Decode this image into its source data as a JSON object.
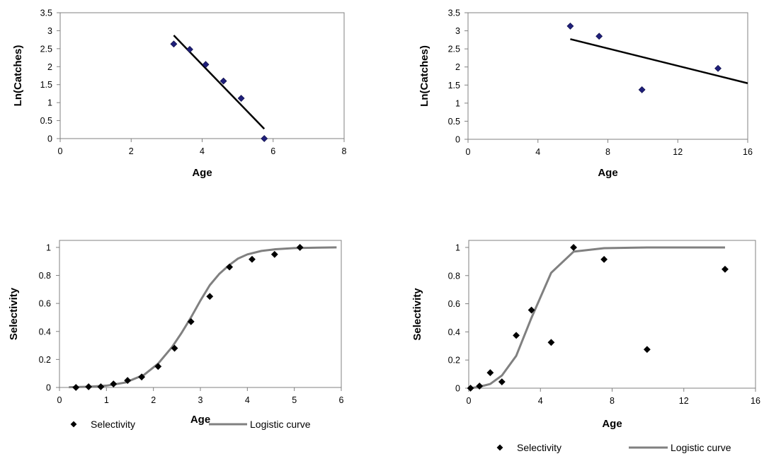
{
  "chart_data": [
    {
      "id": "top-left",
      "type": "scatter",
      "xlabel": "Age",
      "ylabel": "Ln(Catches)",
      "xlim": [
        0,
        8
      ],
      "ylim": [
        0,
        3.5
      ],
      "xticks": [
        "0",
        "2",
        "4",
        "6",
        "8"
      ],
      "yticks": [
        "0",
        "0.5",
        "1",
        "1.5",
        "2",
        "2.5",
        "3",
        "3.5"
      ],
      "grid": false,
      "series": [
        {
          "kind": "points",
          "marker": "diamond",
          "color": "#1f1f7a",
          "x": [
            3.2,
            3.65,
            4.1,
            4.6,
            5.1,
            5.75
          ],
          "y": [
            2.63,
            2.48,
            2.06,
            1.6,
            1.12,
            0.0
          ]
        },
        {
          "kind": "line",
          "color": "#000000",
          "x": [
            3.2,
            5.75
          ],
          "y": [
            2.87,
            0.27
          ]
        }
      ]
    },
    {
      "id": "top-right",
      "type": "scatter",
      "xlabel": "Age",
      "ylabel": "Ln(Catches)",
      "xlim": [
        0,
        16
      ],
      "ylim": [
        0,
        3.5
      ],
      "xticks": [
        "0",
        "4",
        "8",
        "12",
        "16"
      ],
      "yticks": [
        "0",
        "0.5",
        "1",
        "1.5",
        "2",
        "2.5",
        "3",
        "3.5"
      ],
      "grid": false,
      "series": [
        {
          "kind": "points",
          "marker": "diamond",
          "color": "#1f1f7a",
          "x": [
            5.85,
            7.5,
            9.95,
            14.3
          ],
          "y": [
            3.13,
            2.85,
            1.37,
            1.96
          ]
        },
        {
          "kind": "line",
          "color": "#000000",
          "x": [
            5.85,
            16
          ],
          "y": [
            2.77,
            1.55
          ]
        }
      ]
    },
    {
      "id": "bottom-left",
      "type": "scatter",
      "xlabel": "Age",
      "ylabel": "Selectivity",
      "xlim": [
        0,
        6
      ],
      "ylim": [
        0,
        1.05
      ],
      "xticks": [
        "0",
        "1",
        "2",
        "3",
        "4",
        "5",
        "6"
      ],
      "yticks": [
        "0",
        "0.2",
        "0.4",
        "0.6",
        "0.8",
        "1"
      ],
      "grid": false,
      "legend": {
        "placement": "bottom",
        "entries": [
          "Selectivity",
          "Logistic curve"
        ]
      },
      "series": [
        {
          "name": "Selectivity",
          "kind": "points",
          "marker": "diamond",
          "color": "#000000",
          "x": [
            0.35,
            0.62,
            0.88,
            1.15,
            1.45,
            1.75,
            2.1,
            2.45,
            2.8,
            3.2,
            3.62,
            4.1,
            4.58,
            5.12
          ],
          "y": [
            0.0,
            0.005,
            0.005,
            0.025,
            0.05,
            0.075,
            0.15,
            0.28,
            0.47,
            0.65,
            0.86,
            0.915,
            0.95,
            1.0
          ]
        },
        {
          "name": "Logistic curve",
          "kind": "line",
          "color": "#808080",
          "x": [
            0.2,
            0.6,
            1.0,
            1.4,
            1.8,
            2.1,
            2.4,
            2.6,
            2.8,
            3.0,
            3.2,
            3.4,
            3.6,
            3.8,
            4.0,
            4.3,
            4.6,
            5.0,
            5.5,
            5.9
          ],
          "y": [
            0.002,
            0.005,
            0.013,
            0.035,
            0.09,
            0.17,
            0.29,
            0.39,
            0.5,
            0.62,
            0.73,
            0.81,
            0.87,
            0.92,
            0.95,
            0.975,
            0.987,
            0.995,
            0.998,
            1.0
          ]
        }
      ]
    },
    {
      "id": "bottom-right",
      "type": "scatter",
      "xlabel": "Age",
      "ylabel": "Selectivity",
      "xlim": [
        0,
        16
      ],
      "ylim": [
        0,
        1.05
      ],
      "xticks": [
        "0",
        "4",
        "8",
        "12",
        "16"
      ],
      "yticks": [
        "0",
        "0.2",
        "0.4",
        "0.6",
        "0.8",
        "1"
      ],
      "grid": false,
      "legend": {
        "placement": "bottom",
        "entries": [
          "Selectivity",
          "Logistic curve"
        ]
      },
      "series": [
        {
          "name": "Selectivity",
          "kind": "points",
          "marker": "diamond",
          "color": "#000000",
          "x": [
            0.1,
            0.6,
            1.2,
            1.85,
            2.65,
            3.5,
            4.6,
            5.85,
            7.55,
            9.95,
            14.3
          ],
          "y": [
            0.0,
            0.015,
            0.11,
            0.045,
            0.375,
            0.555,
            0.325,
            1.0,
            0.915,
            0.275,
            0.845
          ]
        },
        {
          "name": "Logistic curve",
          "kind": "line",
          "color": "#808080",
          "x": [
            0.1,
            0.6,
            1.2,
            1.85,
            2.65,
            3.5,
            4.6,
            5.85,
            7.55,
            9.95,
            14.3
          ],
          "y": [
            0.0,
            0.01,
            0.03,
            0.09,
            0.23,
            0.5,
            0.82,
            0.97,
            0.995,
            1.0,
            1.0
          ]
        }
      ]
    }
  ]
}
